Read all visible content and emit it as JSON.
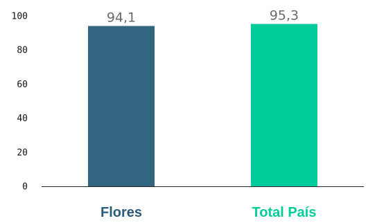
{
  "chart_data": {
    "type": "bar",
    "categories": [
      "Flores",
      "Total País"
    ],
    "values": [
      94.1,
      95.3
    ],
    "value_labels": [
      "94,1",
      "95,3"
    ],
    "colors": [
      "#326580",
      "#00cc99"
    ],
    "category_label_colors": [
      "#2a5b78",
      "#00cc99"
    ],
    "title": "",
    "xlabel": "",
    "ylabel": "",
    "ylim": [
      0,
      100
    ],
    "yticks": [
      0,
      20,
      40,
      60,
      80,
      100
    ],
    "grid": false,
    "legend": "none"
  }
}
